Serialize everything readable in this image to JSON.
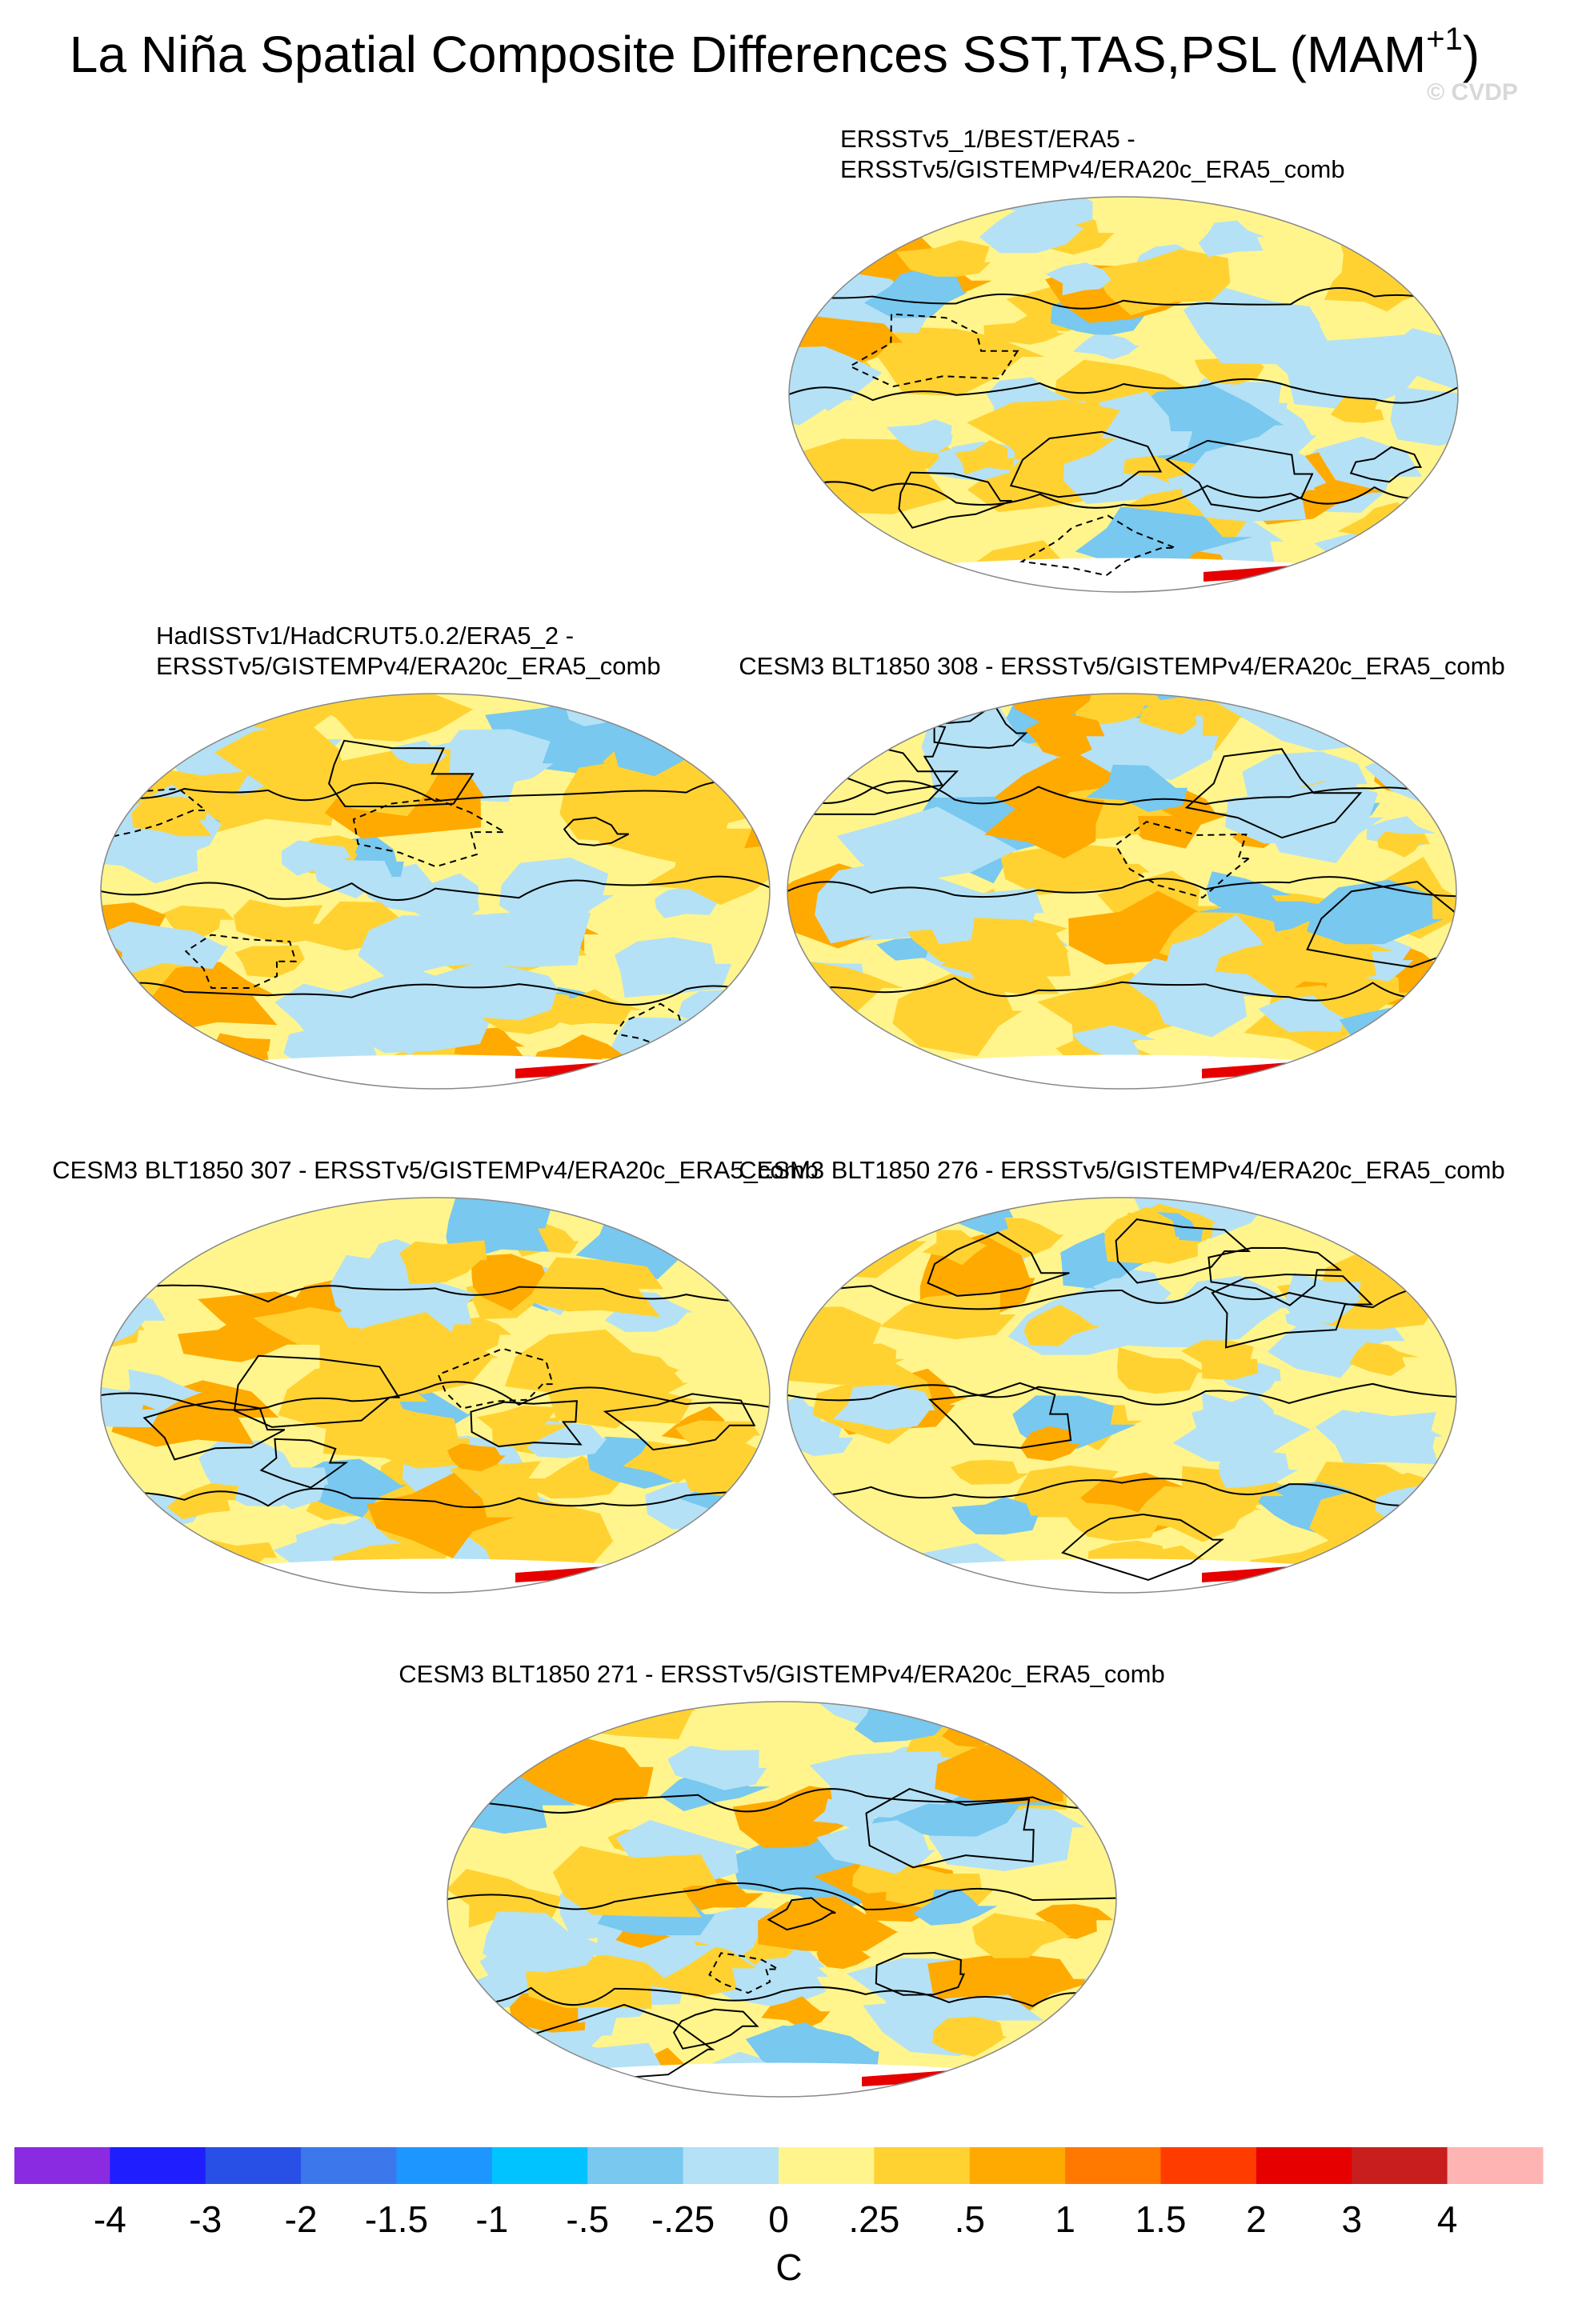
{
  "title": {
    "main": "La Niña Spatial Composite Differences SST,TAS,PSL (MAM",
    "superscript": "+1",
    "end": ")"
  },
  "watermark": "© CVDP",
  "panels": [
    {
      "title": [
        "ERSSTv5_1/BEST/ERA5 -",
        "ERSSTv5/GISTEMPv4/ERA20c_ERA5_comb"
      ]
    },
    {
      "title": [
        "HadISSTv1/HadCRUT5.0.2/ERA5_2 -",
        "ERSSTv5/GISTEMPv4/ERA20c_ERA5_comb"
      ]
    },
    {
      "title": [
        "CESM3 BLT1850 308 - ERSSTv5/GISTEMPv4/ERA20c_ERA5_comb"
      ]
    },
    {
      "title": [
        "CESM3 BLT1850 307 - ERSSTv5/GISTEMPv4/ERA20c_ERA5_comb"
      ]
    },
    {
      "title": [
        "CESM3 BLT1850 276 - ERSSTv5/GISTEMPv4/ERA20c_ERA5_comb"
      ]
    },
    {
      "title": [
        "CESM3 BLT1850 271 - ERSSTv5/GISTEMPv4/ERA20c_ERA5_comb"
      ]
    }
  ],
  "colorbar": {
    "colors": [
      "#8a2be2",
      "#1e1eff",
      "#2850e6",
      "#3c78eb",
      "#1e96ff",
      "#00c3ff",
      "#78c8f0",
      "#b4e1f5",
      "#fff58c",
      "#ffd232",
      "#ffaa00",
      "#ff7800",
      "#ff3c00",
      "#e60000",
      "#c81e1e",
      "#ffb4b4"
    ],
    "labels": [
      "-4",
      "-3",
      "-2",
      "-1.5",
      "-1",
      "-.5",
      "-.25",
      "0",
      ".25",
      ".5",
      "1",
      "1.5",
      "2",
      "3",
      "4"
    ],
    "units": "C"
  }
}
